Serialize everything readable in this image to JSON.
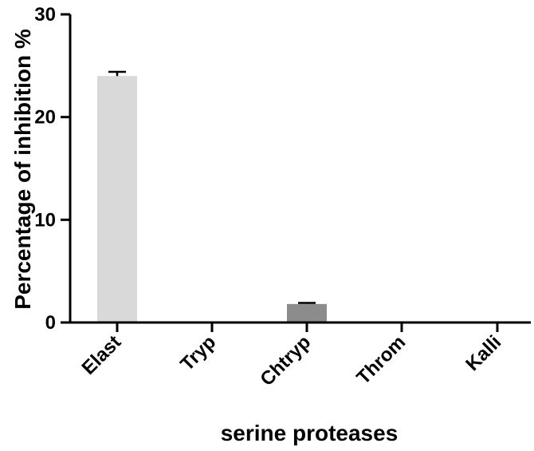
{
  "chart_data": {
    "type": "bar",
    "title": "",
    "xlabel": "serine proteases",
    "ylabel": "Percentage of inhibition %",
    "ylim": [
      0,
      30
    ],
    "yticks": [
      "0",
      "10",
      "20",
      "30"
    ],
    "grid": false,
    "legend": "none",
    "categories": [
      "Elast",
      "Tryp",
      "Chtryp",
      "Throm",
      "Kalli"
    ],
    "values": [
      24.0,
      0,
      1.8,
      0,
      0
    ],
    "errors": [
      0.4,
      0,
      0.1,
      0,
      0
    ],
    "colors": [
      "#d9d9d9",
      "#d9d9d9",
      "#8c8c8c",
      "#d9d9d9",
      "#d9d9d9"
    ]
  }
}
